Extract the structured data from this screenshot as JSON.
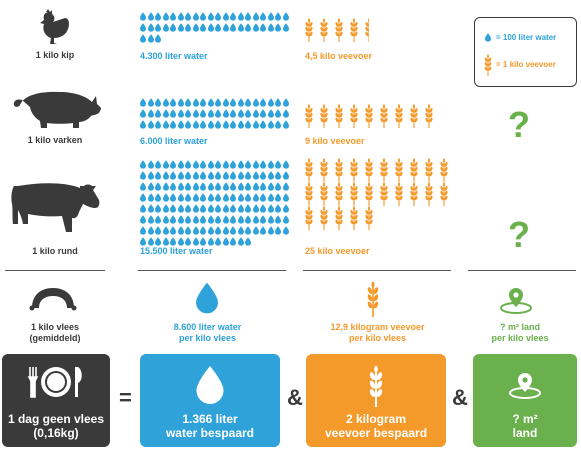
{
  "animals": [
    {
      "label": "1 kilo kip",
      "water": "4.300 liter water",
      "feed": "4,5 kilo veevoer",
      "water_drops": 43,
      "feed_stalks": 4.5,
      "land": ""
    },
    {
      "label": "1 kilo varken",
      "water": "6.000 liter water",
      "feed": "9 kilo veevoer",
      "water_drops": 60,
      "feed_stalks": 9,
      "land": "?"
    },
    {
      "label": "1 kilo rund",
      "water": "15.500 liter water",
      "feed": "25 kilo veevoer",
      "water_drops": 155,
      "feed_stalks": 25,
      "land": "?"
    }
  ],
  "legend": {
    "water": "= 100 liter water",
    "feed": "= 1 kilo veevoer"
  },
  "average": {
    "label_line1": "1 kilo vlees",
    "label_line2": "(gemiddeld)",
    "water_line1": "8.600 liter water",
    "water_line2": "per kilo vlees",
    "feed_line1": "12,9 kilogram veevoer",
    "feed_line2": "per kilo vlees",
    "land_line1": "? m² land",
    "land_line2": "per kilo vlees"
  },
  "summary": {
    "day_line1": "1 dag geen vlees",
    "day_line2": "(0,16kg)",
    "equals": "=",
    "amp": "&",
    "water_line1": "1.366 liter",
    "water_line2": "water bespaard",
    "feed_line1": "2 kilogram",
    "feed_line2": "veevoer bespaard",
    "land_line1": "? m²",
    "land_line2": "land"
  },
  "colors": {
    "water": "#2ea2d9",
    "feed": "#f39a2b",
    "land": "#6ab04c",
    "dark": "#3a3a3a"
  },
  "icons": [
    "chicken-icon",
    "pig-icon",
    "cow-icon",
    "sausage-icon",
    "water-drop-icon",
    "wheat-icon",
    "location-pin-icon",
    "plate-cutlery-icon"
  ]
}
